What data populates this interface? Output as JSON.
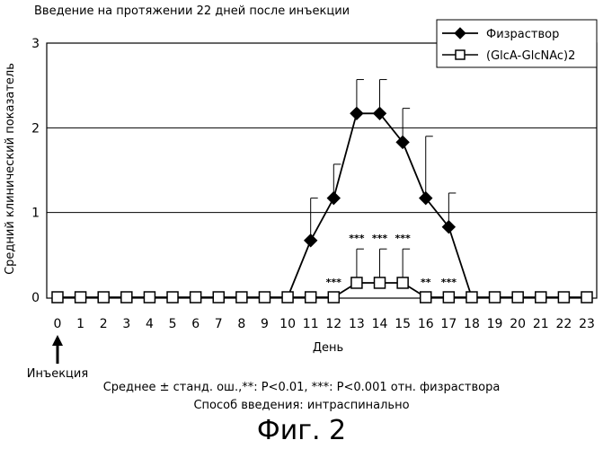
{
  "chart_data": {
    "type": "line",
    "title": "Введение на протяжении 22 дней после инъекции",
    "xlabel": "День",
    "ylabel": "Средний клинический показатель",
    "x": [
      0,
      1,
      2,
      3,
      4,
      5,
      6,
      7,
      8,
      9,
      10,
      11,
      12,
      13,
      14,
      15,
      16,
      17,
      18,
      19,
      20,
      21,
      22,
      23
    ],
    "xlim": [
      0,
      23
    ],
    "ylim": [
      0,
      3
    ],
    "yticks": [
      0,
      1,
      2,
      3
    ],
    "grid": "horizontal",
    "legend_position": "top-right",
    "series": [
      {
        "name": "Физраствор",
        "marker": "diamond-filled",
        "x": [
          10,
          11,
          12,
          13,
          14,
          15,
          16,
          17,
          18
        ],
        "values": [
          0,
          0.67,
          1.17,
          2.17,
          2.17,
          1.83,
          1.17,
          0.83,
          0
        ],
        "error": [
          0,
          0.5,
          0.4,
          0.4,
          0.4,
          0.4,
          0.73,
          0.4,
          0
        ]
      },
      {
        "name": "(GlcA-GlcNAc)2",
        "marker": "square-open",
        "x": [
          0,
          1,
          2,
          3,
          4,
          5,
          6,
          7,
          8,
          9,
          10,
          11,
          12,
          13,
          14,
          15,
          16,
          17,
          18,
          19,
          20,
          21,
          22,
          23
        ],
        "values": [
          0,
          0,
          0,
          0,
          0,
          0,
          0,
          0,
          0,
          0,
          0,
          0,
          0,
          0.17,
          0.17,
          0.17,
          0,
          0,
          0,
          0,
          0,
          0,
          0,
          0
        ],
        "error": [
          0,
          0,
          0,
          0,
          0,
          0,
          0,
          0,
          0,
          0,
          0,
          0,
          0,
          0.4,
          0.4,
          0.4,
          0,
          0,
          0,
          0,
          0,
          0,
          0,
          0
        ]
      }
    ],
    "significance": [
      {
        "x": 12,
        "label": "***"
      },
      {
        "x": 13,
        "label": "***"
      },
      {
        "x": 14,
        "label": "***"
      },
      {
        "x": 15,
        "label": "***"
      },
      {
        "x": 16,
        "label": "**"
      },
      {
        "x": 17,
        "label": "***"
      }
    ],
    "annotation": {
      "x": 0,
      "label": "Инъекция"
    }
  },
  "caption": {
    "line1": "Среднее ± станд. ош.,**: P<0.01, ***: P<0.001 отн. физраствора",
    "line2": "Способ введения: интраспинально"
  },
  "figure_label": "Фиг. 2"
}
